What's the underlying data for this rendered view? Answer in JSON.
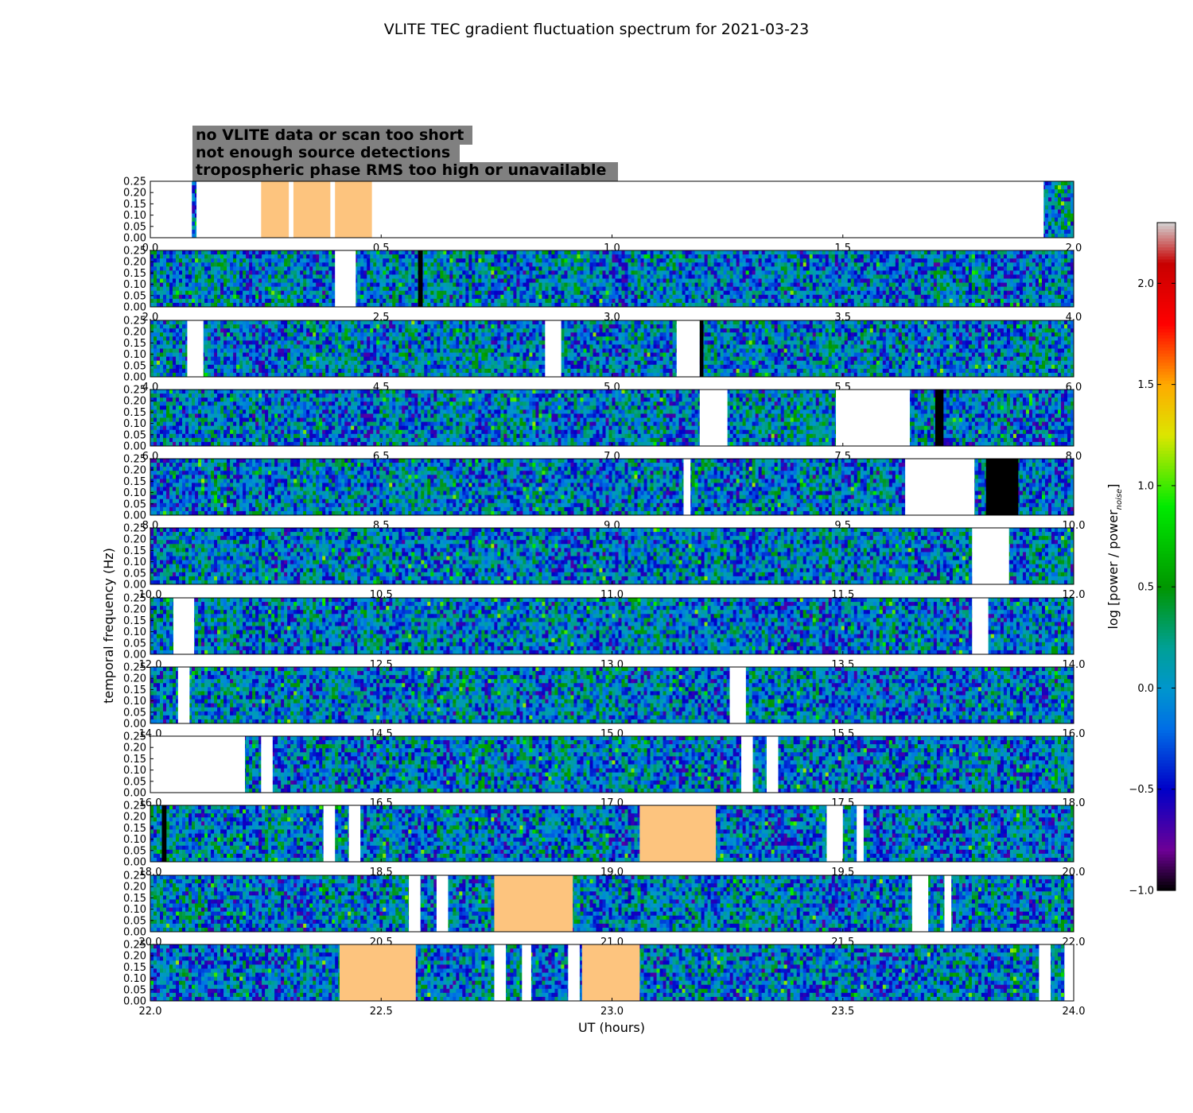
{
  "chart_data": {
    "type": "heatmap",
    "title": "VLITE TEC gradient fluctuation spectrum for 2021-03-23",
    "xlabel": "UT (hours)",
    "ylabel": "temporal frequency (Hz)",
    "colorbar_label": "log [power / power",
    "colorbar_label_subscript": "noise",
    "colorbar_label_close": "]",
    "colorbar_range": [
      -1.0,
      2.3
    ],
    "colorbar_ticks": [
      "2.0",
      "1.5",
      "1.0",
      "0.5",
      "0.0",
      "−0.5",
      "−1.0"
    ],
    "colorbar_tick_values": [
      2.0,
      1.5,
      1.0,
      0.5,
      0.0,
      -0.5,
      -1.0
    ],
    "ylim": [
      0,
      0.25
    ],
    "y_ticks": [
      "0.00",
      "0.05",
      "0.10",
      "0.15",
      "0.20",
      "0.25"
    ],
    "legend": [
      {
        "text": "no VLITE data or scan too short",
        "color": "#ffffff"
      },
      {
        "text": "not enough source detections",
        "color": "#000000"
      },
      {
        "text": "tropospheric phase RMS too high or unavailable",
        "color": "#fdc47e"
      }
    ],
    "legend_background": "#808080",
    "typical_value_range": [
      -0.6,
      0.6
    ],
    "panels": [
      {
        "xlim": [
          0,
          2
        ],
        "x_ticks": [
          "0.0",
          "0.5",
          "1.0",
          "1.5",
          "2.0"
        ],
        "no_data": [
          [
            0.0,
            0.09
          ],
          [
            0.79,
            1.58
          ],
          [
            1.935,
            0.1
          ],
          [
            1.725,
            1.735
          ]
        ],
        "tropo": [
          [
            0.24,
            0.3
          ],
          [
            0.31,
            0.39
          ],
          [
            0.4,
            0.48
          ]
        ],
        "few_detections": []
      },
      {
        "xlim": [
          2,
          4
        ],
        "x_ticks": [
          "2.0",
          "2.5",
          "3.0",
          "3.5",
          "4.0"
        ],
        "no_data": [
          [
            2.4,
            2.445
          ]
        ],
        "tropo": [],
        "few_detections": [
          [
            2.58,
            2.59
          ]
        ]
      },
      {
        "xlim": [
          4,
          6
        ],
        "x_ticks": [
          "4.0",
          "4.5",
          "5.0",
          "5.5",
          "6.0"
        ],
        "no_data": [
          [
            4.08,
            4.115
          ],
          [
            4.855,
            4.89
          ],
          [
            5.14,
            5.19
          ]
        ],
        "tropo": [],
        "few_detections": [
          [
            5.19,
            5.198
          ]
        ]
      },
      {
        "xlim": [
          6,
          8
        ],
        "x_ticks": [
          "6.0",
          "6.5",
          "7.0",
          "7.5",
          "8.0"
        ],
        "no_data": [
          [
            7.19,
            7.25
          ],
          [
            7.485,
            7.645
          ]
        ],
        "tropo": [],
        "few_detections": [
          [
            7.7,
            7.718
          ]
        ]
      },
      {
        "xlim": [
          8,
          10
        ],
        "x_ticks": [
          "8.0",
          "8.5",
          "9.0",
          "9.5",
          "10.0"
        ],
        "no_data": [
          [
            9.155,
            9.17
          ],
          [
            9.635,
            9.785
          ]
        ],
        "tropo": [],
        "few_detections": [
          [
            9.81,
            9.88
          ]
        ]
      },
      {
        "xlim": [
          10,
          12
        ],
        "x_ticks": [
          "10.0",
          "10.5",
          "11.0",
          "11.5",
          "12.0"
        ],
        "no_data": [
          [
            11.78,
            11.86
          ]
        ],
        "tropo": [],
        "few_detections": []
      },
      {
        "xlim": [
          12,
          14
        ],
        "x_ticks": [
          "12.0",
          "12.5",
          "13.0",
          "13.5",
          "14.0"
        ],
        "no_data": [
          [
            12.05,
            12.095
          ],
          [
            13.78,
            13.815
          ]
        ],
        "tropo": [],
        "few_detections": []
      },
      {
        "xlim": [
          14,
          16
        ],
        "x_ticks": [
          "14.0",
          "14.5",
          "15.0",
          "15.5",
          "16.0"
        ],
        "no_data": [
          [
            14.06,
            14.085
          ],
          [
            15.255,
            15.29
          ]
        ],
        "tropo": [],
        "few_detections": []
      },
      {
        "xlim": [
          16,
          18
        ],
        "x_ticks": [
          "16.0",
          "16.5",
          "17.0",
          "17.5",
          "18.0"
        ],
        "no_data": [
          [
            16.0,
            16.205
          ],
          [
            16.24,
            16.265
          ],
          [
            17.28,
            17.305
          ],
          [
            17.335,
            17.36
          ]
        ],
        "tropo": [],
        "few_detections": []
      },
      {
        "xlim": [
          18,
          20
        ],
        "x_ticks": [
          "18.0",
          "18.5",
          "19.0",
          "19.5",
          "20.0"
        ],
        "no_data": [
          [
            18.375,
            18.4
          ],
          [
            18.43,
            18.455
          ],
          [
            19.465,
            19.5
          ],
          [
            19.53,
            19.545
          ]
        ],
        "tropo": [
          [
            19.06,
            19.225
          ]
        ],
        "few_detections": [
          [
            18.025,
            18.035
          ]
        ]
      },
      {
        "xlim": [
          20,
          22
        ],
        "x_ticks": [
          "20.0",
          "20.5",
          "21.0",
          "21.5",
          "22.0"
        ],
        "no_data": [
          [
            20.56,
            20.585
          ],
          [
            20.62,
            20.645
          ],
          [
            21.65,
            21.685
          ],
          [
            21.72,
            21.735
          ]
        ],
        "tropo": [
          [
            20.745,
            20.915
          ]
        ],
        "few_detections": []
      },
      {
        "xlim": [
          22,
          24
        ],
        "x_ticks": [
          "22.0",
          "22.5",
          "23.0",
          "23.5",
          "24.0"
        ],
        "no_data": [
          [
            22.745,
            22.77
          ],
          [
            22.805,
            22.825
          ],
          [
            22.905,
            22.93
          ],
          [
            23.925,
            23.95
          ],
          [
            23.98,
            24.0
          ]
        ],
        "tropo": [
          [
            22.41,
            22.575
          ],
          [
            22.935,
            23.06
          ]
        ],
        "few_detections": []
      }
    ]
  }
}
